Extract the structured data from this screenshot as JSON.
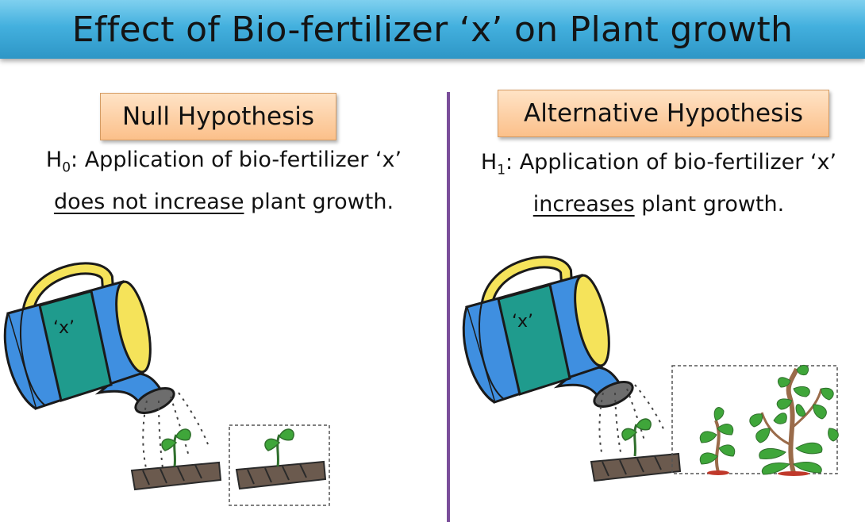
{
  "title": "Effect of Bio-fertilizer ‘x’ on  Plant growth",
  "null_panel": {
    "label": "Null Hypothesis",
    "symbol": "H",
    "subscript": "0",
    "statement_start": ": Application of bio-fertilizer ‘x’",
    "statement_emphasis": "does not increase",
    "statement_end": " plant growth.",
    "can_label": "‘x’"
  },
  "alt_panel": {
    "label": "Alternative Hypothesis",
    "symbol": "H",
    "subscript": "1",
    "statement_start": ": Application of bio-fertilizer ‘x’",
    "statement_emphasis": "increases",
    "statement_end": " plant growth.",
    "can_label": "‘x’"
  },
  "colors": {
    "title_bar": "#43b0de",
    "divider": "#7a4e9a",
    "label_box": "#fbc08a",
    "can_body": "#3f8fe0",
    "can_band": "#1f9b8d",
    "can_handle": "#f5e35a",
    "leaf": "#3fa63a",
    "soil": "#6b5a4e"
  }
}
